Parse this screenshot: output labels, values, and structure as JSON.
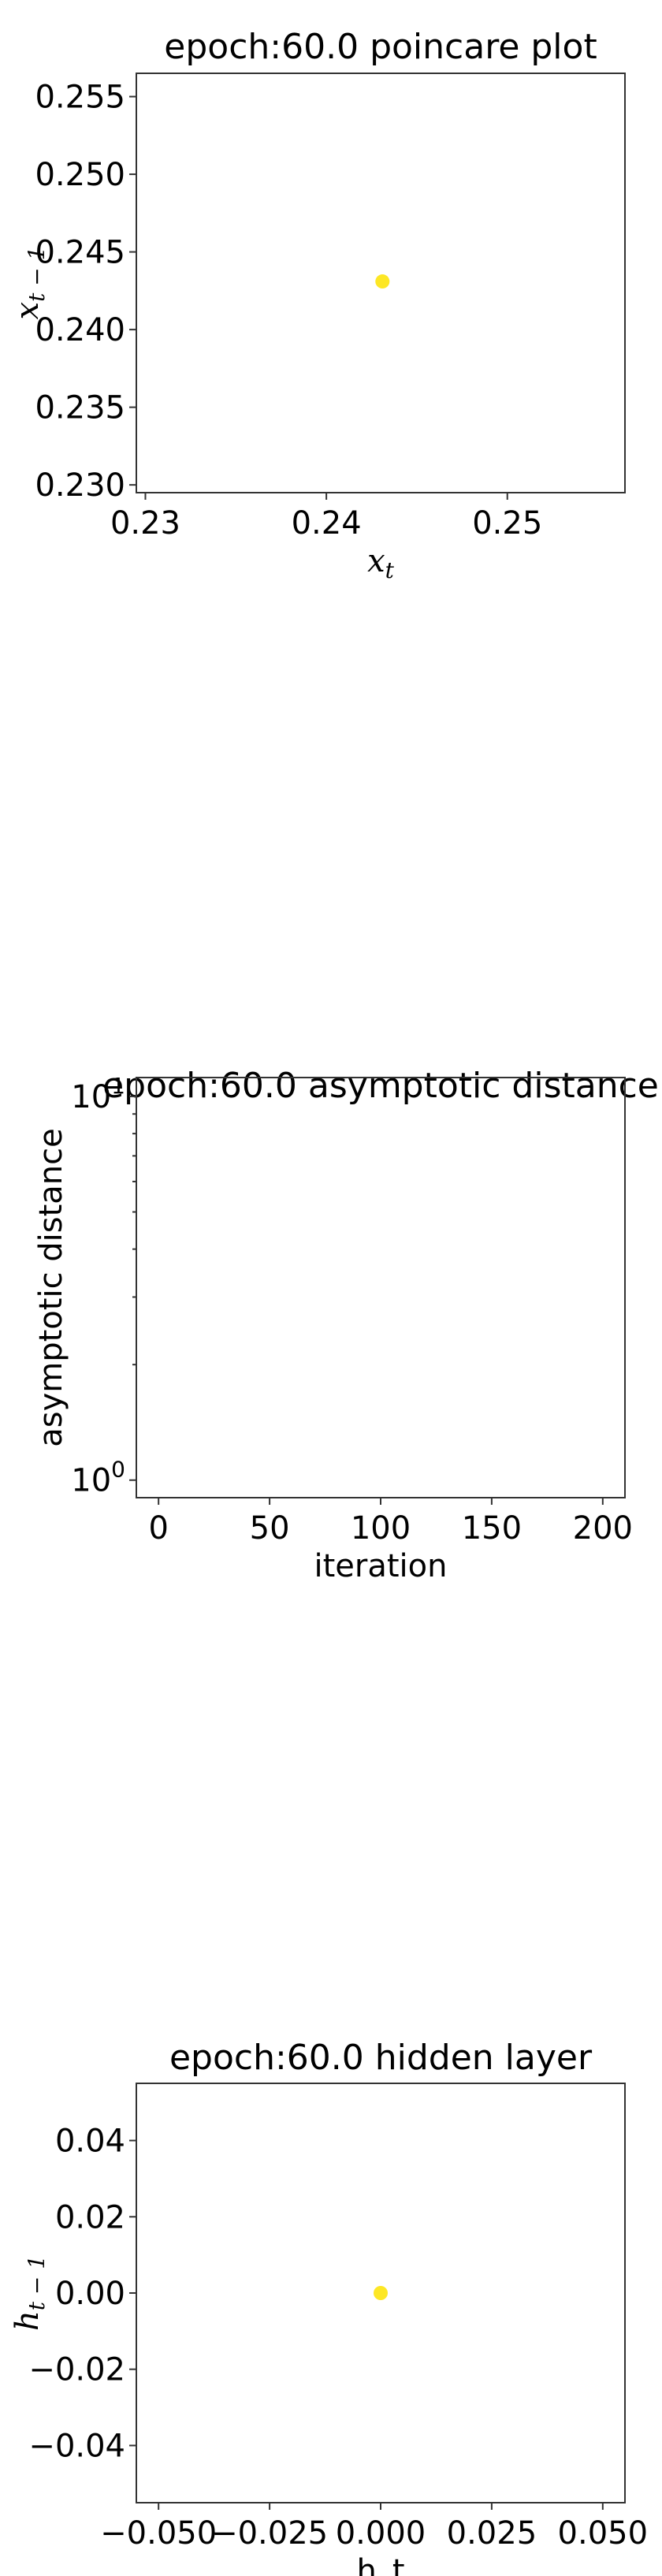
{
  "chart_data": [
    {
      "type": "scatter",
      "title": "epoch:60.0 poincare plot",
      "xlabel": {
        "base": "x",
        "sub": "t"
      },
      "ylabel": {
        "base": "x",
        "sub": "t − 1"
      },
      "xlim": [
        0.2295,
        0.2565
      ],
      "ylim": [
        0.2295,
        0.2565
      ],
      "xticks": [
        0.23,
        0.24,
        0.25
      ],
      "xtick_labels": [
        "0.23",
        "0.24",
        "0.25"
      ],
      "yticks": [
        0.23,
        0.235,
        0.24,
        0.245,
        0.25,
        0.255
      ],
      "ytick_labels": [
        "0.230",
        "0.235",
        "0.240",
        "0.245",
        "0.250",
        "0.255"
      ],
      "points": [
        {
          "x": 0.2431,
          "y": 0.2431
        }
      ],
      "color": "#fde725",
      "grid": false
    },
    {
      "type": "line",
      "title": "epoch:60.0 asymptotic distance",
      "xlabel": "iteration",
      "ylabel": "asymptotic distance",
      "yscale": "log",
      "xlim": [
        -10,
        210
      ],
      "ylim": [
        0.9,
        11.2
      ],
      "xticks": [
        0,
        50,
        100,
        150,
        200
      ],
      "xtick_labels": [
        "0",
        "50",
        "100",
        "150",
        "200"
      ],
      "yticks": [
        1,
        10
      ],
      "ytick_labels": [
        {
          "base": "10",
          "exp": "0"
        },
        {
          "base": "10",
          "exp": "1"
        }
      ],
      "series": [],
      "grid": false
    },
    {
      "type": "scatter",
      "title": "epoch:60.0 hidden layer",
      "xlabel": "h_t",
      "ylabel": {
        "base": "h",
        "sub": "t − 1"
      },
      "xlim": [
        -0.055,
        0.055
      ],
      "ylim": [
        -0.055,
        0.055
      ],
      "xticks": [
        -0.05,
        -0.025,
        0,
        0.025,
        0.05
      ],
      "xtick_labels": [
        "−0.050",
        "−0.025",
        "0.000",
        "0.025",
        "0.050"
      ],
      "yticks": [
        -0.04,
        -0.02,
        0,
        0.02,
        0.04
      ],
      "ytick_labels": [
        "−0.04",
        "−0.02",
        "0.00",
        "0.02",
        "0.04"
      ],
      "points": [
        {
          "x": 0,
          "y": 0
        }
      ],
      "color": "#fde725",
      "grid": false
    }
  ]
}
